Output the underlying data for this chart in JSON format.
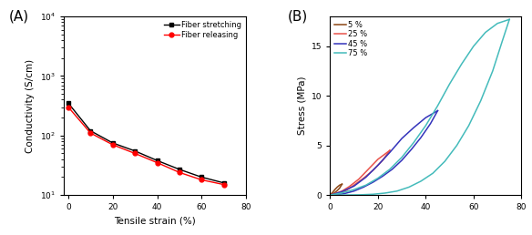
{
  "panel_A": {
    "label": "(A)",
    "stretching_x": [
      0,
      10,
      20,
      30,
      40,
      50,
      60,
      70
    ],
    "stretching_y": [
      350,
      120,
      75,
      55,
      38,
      27,
      20,
      16
    ],
    "releasing_x": [
      0,
      10,
      20,
      30,
      40,
      50,
      60,
      70
    ],
    "releasing_y": [
      300,
      110,
      70,
      50,
      35,
      24,
      18,
      15
    ],
    "stretching_color": "black",
    "releasing_color": "red",
    "stretching_label": "Fiber stretching",
    "releasing_label": "Fiber releasing",
    "xlabel": "Tensile strain (%)",
    "ylabel": "Conductivity (S/cm)",
    "xlim": [
      -2,
      80
    ],
    "ylim_log": [
      10.0,
      10000.0
    ],
    "xticks": [
      0,
      20,
      40,
      60,
      80
    ]
  },
  "panel_B": {
    "label": "(B)",
    "xlabel": "",
    "ylabel": "Stress (MPa)",
    "xlim": [
      0,
      80
    ],
    "ylim": [
      0,
      18
    ],
    "xticks": [
      0,
      20,
      40,
      60,
      80
    ],
    "yticks": [
      0,
      5,
      10,
      15
    ],
    "curves": [
      {
        "label": "5 %",
        "color": "#8B4513",
        "loading_x": [
          0,
          1,
          2,
          3,
          4,
          5
        ],
        "loading_y": [
          0,
          0.25,
          0.55,
          0.8,
          1.0,
          1.1
        ],
        "unloading_x": [
          5,
          4,
          3,
          2,
          1,
          0.5,
          0
        ],
        "unloading_y": [
          1.1,
          0.7,
          0.45,
          0.25,
          0.08,
          0.02,
          0
        ]
      },
      {
        "label": "25 %",
        "color": "#e8524a",
        "loading_x": [
          0,
          2,
          5,
          8,
          12,
          16,
          20,
          25
        ],
        "loading_y": [
          0,
          0.15,
          0.4,
          0.85,
          1.6,
          2.6,
          3.6,
          4.5
        ],
        "unloading_x": [
          25,
          22,
          18,
          14,
          10,
          7,
          4,
          2,
          0
        ],
        "unloading_y": [
          4.5,
          3.5,
          2.5,
          1.7,
          1.0,
          0.5,
          0.2,
          0.05,
          0
        ]
      },
      {
        "label": "45 %",
        "color": "#3333bb",
        "loading_x": [
          0,
          2,
          5,
          10,
          15,
          20,
          25,
          30,
          35,
          40,
          45
        ],
        "loading_y": [
          0,
          0.12,
          0.35,
          0.9,
          1.8,
          3.0,
          4.3,
          5.7,
          6.8,
          7.8,
          8.5
        ],
        "unloading_x": [
          45,
          42,
          38,
          34,
          30,
          26,
          22,
          18,
          14,
          10,
          6,
          3,
          0
        ],
        "unloading_y": [
          8.5,
          7.2,
          5.8,
          4.6,
          3.5,
          2.6,
          1.9,
          1.3,
          0.8,
          0.4,
          0.15,
          0.04,
          0
        ]
      },
      {
        "label": "75 %",
        "color": "#44bbbb",
        "loading_x": [
          0,
          2,
          5,
          10,
          15,
          20,
          25,
          30,
          35,
          40,
          45,
          50,
          55,
          60,
          65,
          70,
          75
        ],
        "loading_y": [
          0,
          0.08,
          0.22,
          0.55,
          1.0,
          1.7,
          2.6,
          3.8,
          5.3,
          7.0,
          9.0,
          11.2,
          13.2,
          15.0,
          16.4,
          17.3,
          17.7
        ],
        "unloading_x": [
          75,
          72,
          68,
          63,
          58,
          53,
          48,
          43,
          38,
          33,
          28,
          23,
          18,
          13,
          8,
          4,
          1,
          0
        ],
        "unloading_y": [
          17.7,
          15.5,
          12.5,
          9.5,
          7.0,
          5.0,
          3.4,
          2.2,
          1.4,
          0.8,
          0.4,
          0.2,
          0.08,
          0.03,
          0.01,
          0,
          0,
          0
        ]
      }
    ]
  },
  "fig_width": 5.84,
  "fig_height": 2.58,
  "dpi": 100
}
